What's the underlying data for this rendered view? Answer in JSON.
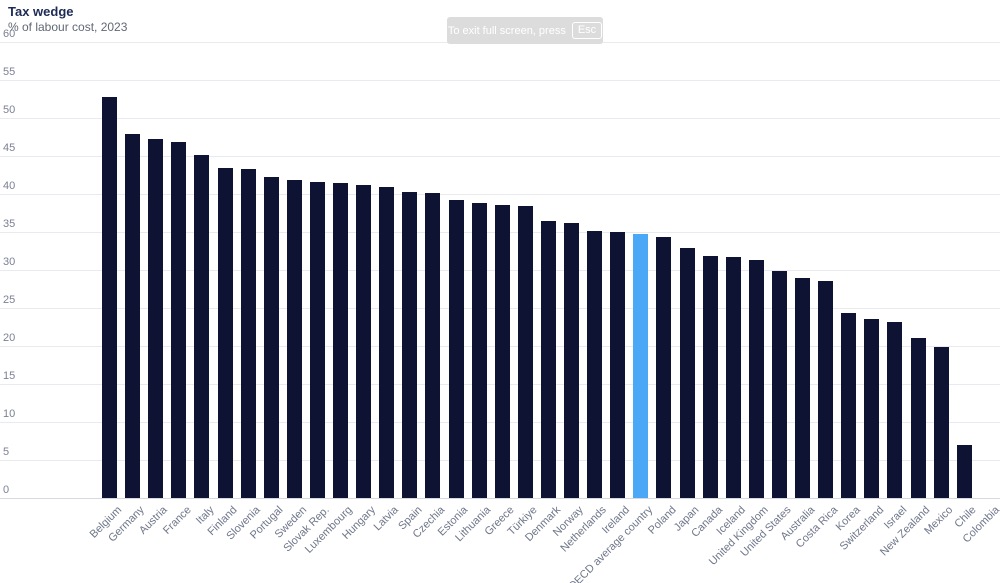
{
  "header": {
    "title": "Tax wedge",
    "subtitle": "% of labour cost, 2023"
  },
  "fullscreen_toast": {
    "text_before_key": "To exit full screen, press",
    "key_label": "Esc"
  },
  "colors": {
    "bar": "#0E1233",
    "highlight_bar": "#4BA8F7",
    "title_text": "#1C2A55",
    "subtitle_text": "#616875",
    "axis_label_text": "#6F768A",
    "gridline": "#E9EAEF",
    "toast_background": "#DCDCDC",
    "toast_text": "#FFFFFF"
  },
  "chart_data": {
    "type": "bar",
    "title": "Tax wedge",
    "subtitle": "% of labour cost, 2023",
    "xlabel": "",
    "ylabel": "% of labour cost",
    "ylim": [
      0,
      60
    ],
    "ytick_interval": 5,
    "yticks": [
      0,
      5,
      10,
      15,
      20,
      25,
      30,
      35,
      40,
      45,
      50,
      55,
      60
    ],
    "grid": true,
    "legend_position": "none",
    "bar_color": "#0E1233",
    "highlight_color": "#4BA8F7",
    "highlight_category": "OECD average country",
    "categories": [
      "Belgium",
      "Germany",
      "Austria",
      "France",
      "Italy",
      "Finland",
      "Slovenia",
      "Portugal",
      "Sweden",
      "Slovak Rep.",
      "Luxembourg",
      "Hungary",
      "Latvia",
      "Spain",
      "Czechia",
      "Estonia",
      "Lithuania",
      "Greece",
      "Türkiye",
      "Denmark",
      "Norway",
      "Netherlands",
      "Ireland",
      "OECD average country",
      "Poland",
      "Japan",
      "Canada",
      "Iceland",
      "United Kingdom",
      "United States",
      "Australia",
      "Costa Rica",
      "Korea",
      "Switzerland",
      "Israel",
      "New Zealand",
      "Mexico",
      "Chile",
      "Colombia"
    ],
    "values": [
      52.7,
      47.9,
      47.2,
      46.8,
      45.1,
      43.4,
      43.3,
      42.3,
      41.9,
      41.6,
      41.4,
      41.2,
      40.9,
      40.2,
      40.1,
      39.2,
      38.8,
      38.6,
      38.4,
      36.4,
      36.2,
      35.1,
      35.0,
      34.8,
      34.3,
      32.9,
      31.9,
      31.7,
      31.3,
      29.9,
      29.0,
      28.5,
      24.4,
      23.5,
      23.1,
      21.0,
      19.9,
      7.0,
      0.0
    ]
  }
}
